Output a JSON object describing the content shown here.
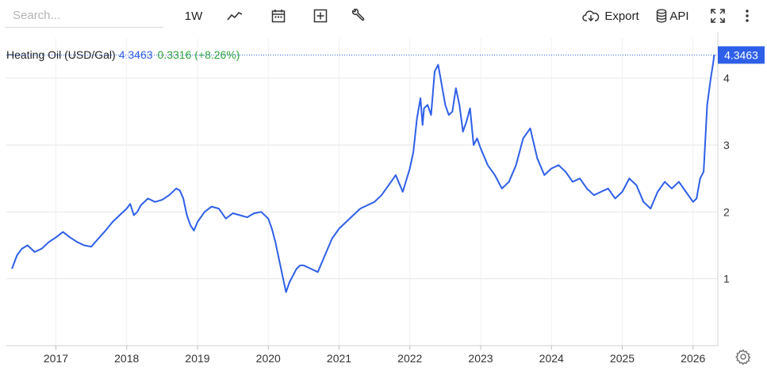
{
  "toolbar": {
    "search_placeholder": "Search...",
    "interval_label": "1W",
    "export_label": "Export",
    "api_label": "API",
    "icons": [
      "line-chart-icon",
      "calendar-icon",
      "add-box-icon",
      "wrench-icon",
      "cloud-download-icon",
      "database-icon",
      "fullscreen-icon",
      "more-vertical-icon",
      "gear-icon"
    ]
  },
  "legend": {
    "name": "Heating Oil (USD/Gal)",
    "last": "4.3463",
    "change": "0.3316 (+8.26%)"
  },
  "colors": {
    "line": "#2e5fe8",
    "change_positive": "#2aa534",
    "badge_bg": "#2e5fe8",
    "grid": "#e6e6e6"
  },
  "chart_data": {
    "type": "line",
    "title": "",
    "last_value_label": "4.3463",
    "x_ticks": [
      "2017",
      "2018",
      "2019",
      "2020",
      "2021",
      "2022",
      "2023",
      "2024",
      "2025",
      "2026"
    ],
    "y_ticks": [
      "1",
      "2",
      "3",
      "4"
    ],
    "xlim": [
      2016.3,
      2026.35
    ],
    "ylim": [
      0,
      4.6
    ],
    "grid": true,
    "series": [
      {
        "x": [
          2016.38,
          2016.45,
          2016.52,
          2016.6,
          2016.7,
          2016.8,
          2016.9,
          2017.0,
          2017.1,
          2017.2,
          2017.3,
          2017.4,
          2017.5,
          2017.6,
          2017.7,
          2017.8,
          2017.9,
          2018.0,
          2018.05,
          2018.1,
          2018.15,
          2018.2,
          2018.3,
          2018.4,
          2018.5,
          2018.6,
          2018.7,
          2018.75,
          2018.8,
          2018.85,
          2018.9,
          2018.95,
          2019.0,
          2019.1,
          2019.2,
          2019.3,
          2019.4,
          2019.5,
          2019.6,
          2019.7,
          2019.8,
          2019.9,
          2020.0,
          2020.05,
          2020.1,
          2020.15,
          2020.2,
          2020.25,
          2020.3,
          2020.35,
          2020.4,
          2020.45,
          2020.5,
          2020.6,
          2020.7,
          2020.8,
          2020.9,
          2021.0,
          2021.1,
          2021.2,
          2021.3,
          2021.4,
          2021.5,
          2021.6,
          2021.7,
          2021.8,
          2021.9,
          2022.0,
          2022.05,
          2022.1,
          2022.15,
          2022.18,
          2022.2,
          2022.25,
          2022.3,
          2022.35,
          2022.4,
          2022.45,
          2022.5,
          2022.55,
          2022.6,
          2022.65,
          2022.7,
          2022.75,
          2022.8,
          2022.85,
          2022.9,
          2022.95,
          2023.0,
          2023.1,
          2023.2,
          2023.3,
          2023.4,
          2023.5,
          2023.6,
          2023.7,
          2023.8,
          2023.9,
          2024.0,
          2024.1,
          2024.2,
          2024.3,
          2024.4,
          2024.5,
          2024.6,
          2024.7,
          2024.8,
          2024.9,
          2025.0,
          2025.1,
          2025.2,
          2025.3,
          2025.4,
          2025.5,
          2025.6,
          2025.7,
          2025.8,
          2025.9,
          2026.0,
          2026.05,
          2026.1,
          2026.15,
          2026.2,
          2026.25,
          2026.28,
          2026.3
        ],
        "y": [
          1.15,
          1.35,
          1.45,
          1.5,
          1.4,
          1.45,
          1.55,
          1.62,
          1.7,
          1.62,
          1.55,
          1.5,
          1.48,
          1.6,
          1.72,
          1.85,
          1.95,
          2.05,
          2.12,
          1.95,
          2.0,
          2.1,
          2.2,
          2.15,
          2.18,
          2.25,
          2.35,
          2.32,
          2.2,
          1.95,
          1.8,
          1.72,
          1.85,
          2.0,
          2.08,
          2.05,
          1.9,
          1.98,
          1.95,
          1.92,
          1.98,
          2.0,
          1.9,
          1.75,
          1.55,
          1.3,
          1.05,
          0.8,
          0.95,
          1.05,
          1.15,
          1.2,
          1.2,
          1.15,
          1.1,
          1.35,
          1.6,
          1.75,
          1.85,
          1.95,
          2.05,
          2.1,
          2.15,
          2.25,
          2.4,
          2.55,
          2.3,
          2.65,
          2.9,
          3.4,
          3.7,
          3.3,
          3.55,
          3.6,
          3.45,
          4.1,
          4.2,
          3.9,
          3.6,
          3.45,
          3.5,
          3.85,
          3.6,
          3.2,
          3.35,
          3.55,
          3.0,
          3.1,
          2.95,
          2.7,
          2.55,
          2.35,
          2.45,
          2.7,
          3.1,
          3.25,
          2.8,
          2.55,
          2.65,
          2.7,
          2.6,
          2.45,
          2.5,
          2.35,
          2.25,
          2.3,
          2.35,
          2.2,
          2.3,
          2.5,
          2.4,
          2.15,
          2.05,
          2.3,
          2.45,
          2.35,
          2.45,
          2.3,
          2.15,
          2.2,
          2.5,
          2.6,
          3.6,
          4.0,
          4.2,
          4.35
        ]
      }
    ]
  }
}
